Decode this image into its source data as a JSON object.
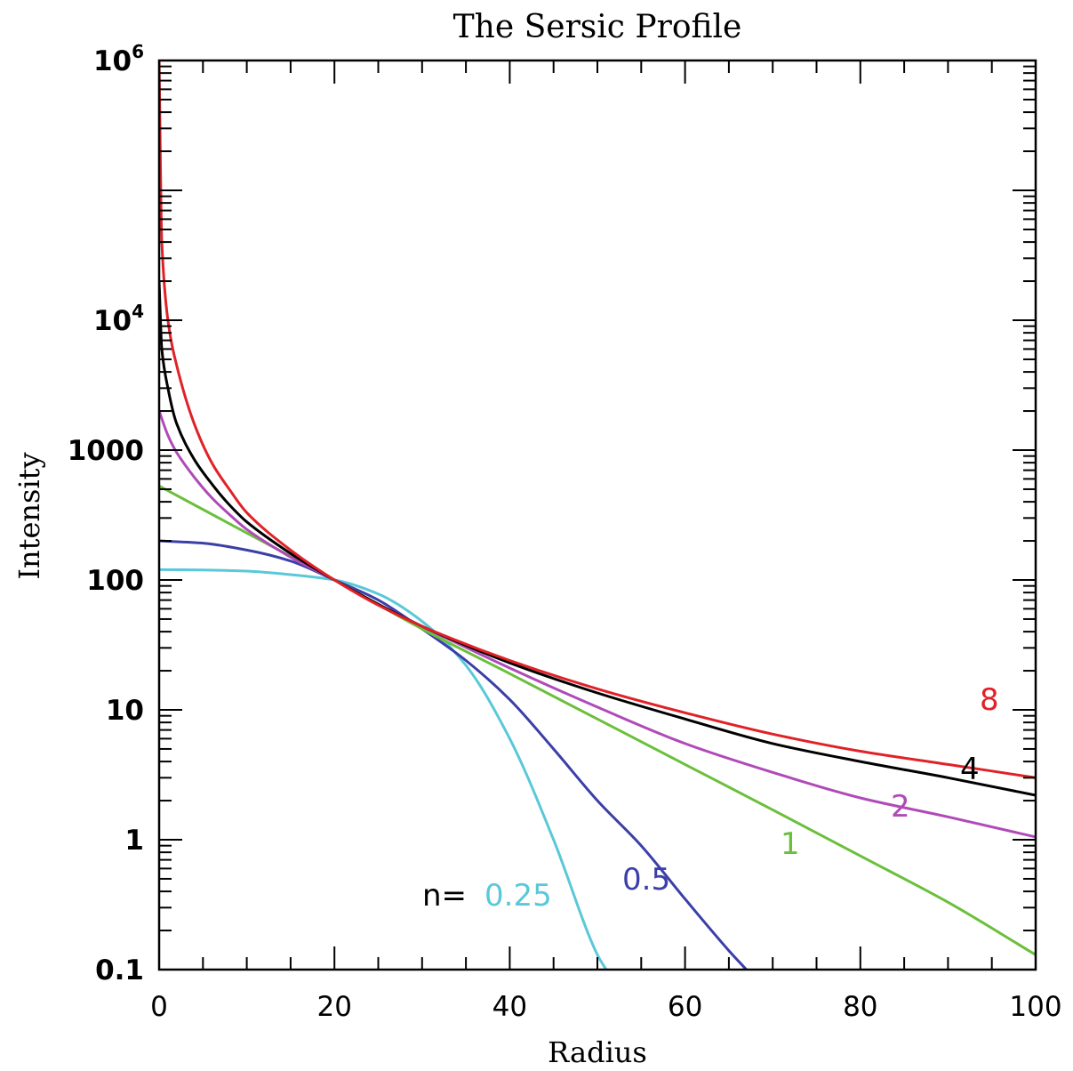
{
  "chart_data": {
    "type": "line",
    "title": "The Sersic Profile",
    "xlabel": "Radius",
    "ylabel": "Intensity",
    "xlim": [
      0,
      100
    ],
    "ylim": [
      0.1,
      1000000
    ],
    "yscale": "log",
    "grid": false,
    "x_ticks": [
      {
        "value": 0,
        "label": "0"
      },
      {
        "value": 20,
        "label": "20"
      },
      {
        "value": 40,
        "label": "40"
      },
      {
        "value": 60,
        "label": "60"
      },
      {
        "value": 80,
        "label": "80"
      },
      {
        "value": 100,
        "label": "100"
      }
    ],
    "y_ticks": [
      {
        "value": 0.1,
        "label": "0.1",
        "base": "",
        "exp": ""
      },
      {
        "value": 1,
        "label": "1",
        "base": "",
        "exp": ""
      },
      {
        "value": 10,
        "label": "10",
        "base": "",
        "exp": ""
      },
      {
        "value": 100,
        "label": "100",
        "base": "",
        "exp": ""
      },
      {
        "value": 1000,
        "label": "1000",
        "base": "",
        "exp": ""
      },
      {
        "value": 10000,
        "label": "",
        "base": "10",
        "exp": "4"
      },
      {
        "value": 1000000,
        "label": "",
        "base": "10",
        "exp": "6"
      }
    ],
    "series_prefix_label": "n=",
    "series": [
      {
        "name": "0.25",
        "color": "#5ac8d8",
        "x": [
          0,
          5,
          10,
          15,
          20,
          25,
          30,
          35,
          40,
          45,
          50,
          51
        ],
        "y": [
          120,
          119.5,
          117,
          110,
          100,
          78,
          48,
          22,
          6,
          1,
          0.13,
          0.1
        ]
      },
      {
        "name": "0.5",
        "color": "#3b3fa8",
        "x": [
          0,
          5,
          10,
          15,
          20,
          25,
          30,
          35,
          40,
          45,
          50,
          55,
          60,
          65,
          67
        ],
        "y": [
          200,
          192,
          170,
          140,
          100,
          70,
          42,
          24,
          12,
          5,
          2,
          0.9,
          0.35,
          0.14,
          0.1
        ]
      },
      {
        "name": "1",
        "color": "#6cbf3c",
        "x": [
          0,
          10,
          20,
          30,
          40,
          50,
          60,
          70,
          80,
          90,
          100
        ],
        "y": [
          530,
          230,
          100,
          42,
          19,
          8.5,
          3.8,
          1.7,
          0.75,
          0.33,
          0.13
        ]
      },
      {
        "name": "2",
        "color": "#b04ab8",
        "x": [
          0,
          1,
          2,
          4,
          6,
          8,
          10,
          15,
          20,
          25,
          30,
          40,
          50,
          60,
          70,
          80,
          90,
          100
        ],
        "y": [
          2000,
          1300,
          960,
          620,
          430,
          320,
          245,
          150,
          100,
          65,
          44,
          21,
          10.5,
          5.5,
          3.3,
          2.1,
          1.5,
          1.05
        ]
      },
      {
        "name": "4",
        "color": "#000000",
        "x": [
          0,
          0.3,
          1,
          2,
          4,
          6,
          8,
          10,
          15,
          20,
          25,
          30,
          40,
          50,
          60,
          70,
          80,
          90,
          100
        ],
        "y": [
          20000,
          6000,
          3000,
          1600,
          850,
          550,
          380,
          280,
          160,
          100,
          65,
          44,
          23,
          13.5,
          8.5,
          5.5,
          4,
          3,
          2.2
        ]
      },
      {
        "name": "8",
        "color": "#e02228",
        "x": [
          0,
          0.3,
          1,
          2,
          4,
          6,
          8,
          10,
          15,
          20,
          25,
          30,
          40,
          50,
          60,
          70,
          80,
          90,
          100
        ],
        "y": [
          1000000,
          40000,
          10000,
          4500,
          1600,
          800,
          500,
          330,
          170,
          100,
          64,
          44,
          24,
          14.5,
          9.5,
          6.5,
          4.8,
          3.8,
          3
        ]
      }
    ]
  }
}
